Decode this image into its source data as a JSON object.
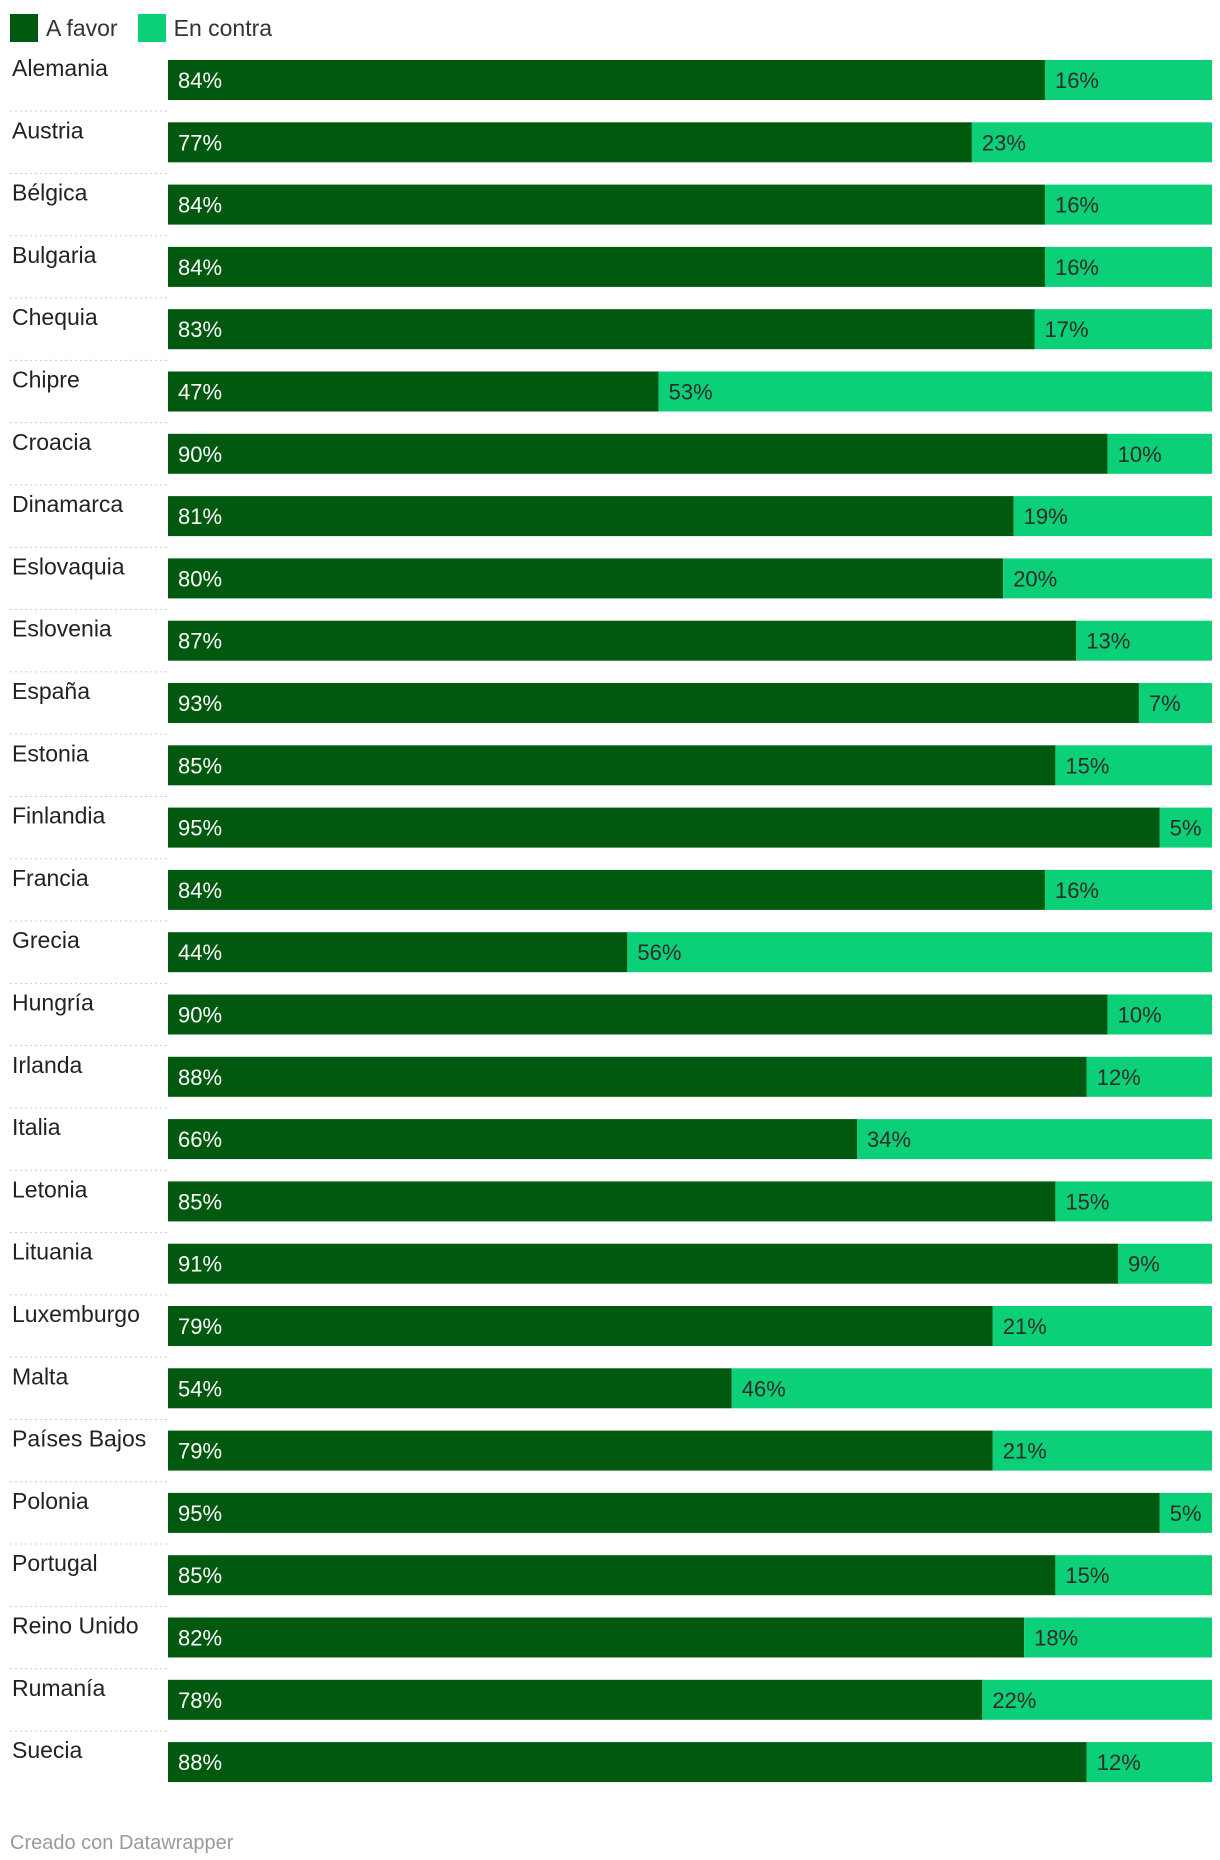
{
  "chart_data": {
    "type": "bar",
    "stacked": true,
    "orientation": "horizontal",
    "xlim": [
      0,
      100
    ],
    "unit": "%",
    "categories": [
      "Alemania",
      "Austria",
      "Bélgica",
      "Bulgaria",
      "Chequia",
      "Chipre",
      "Croacia",
      "Dinamarca",
      "Eslovaquia",
      "Eslovenia",
      "España",
      "Estonia",
      "Finlandia",
      "Francia",
      "Grecia",
      "Hungría",
      "Irlanda",
      "Italia",
      "Letonia",
      "Lituania",
      "Luxemburgo",
      "Malta",
      "Países Bajos",
      "Polonia",
      "Portugal",
      "Reino Unido",
      "Rumanía",
      "Suecia"
    ],
    "series": [
      {
        "name": "A favor",
        "color": "#01590f",
        "values": [
          84,
          77,
          84,
          84,
          83,
          47,
          90,
          81,
          80,
          87,
          93,
          85,
          95,
          84,
          44,
          90,
          88,
          66,
          85,
          91,
          79,
          54,
          79,
          95,
          85,
          82,
          78,
          88
        ]
      },
      {
        "name": "En contra",
        "color": "#0bd078",
        "values": [
          16,
          23,
          16,
          16,
          17,
          53,
          10,
          19,
          20,
          13,
          7,
          15,
          5,
          16,
          56,
          10,
          12,
          34,
          15,
          9,
          21,
          46,
          21,
          5,
          15,
          18,
          22,
          12
        ]
      }
    ],
    "legend_position": "top-left",
    "grid": false
  },
  "footer": "Creado con Datawrapper"
}
